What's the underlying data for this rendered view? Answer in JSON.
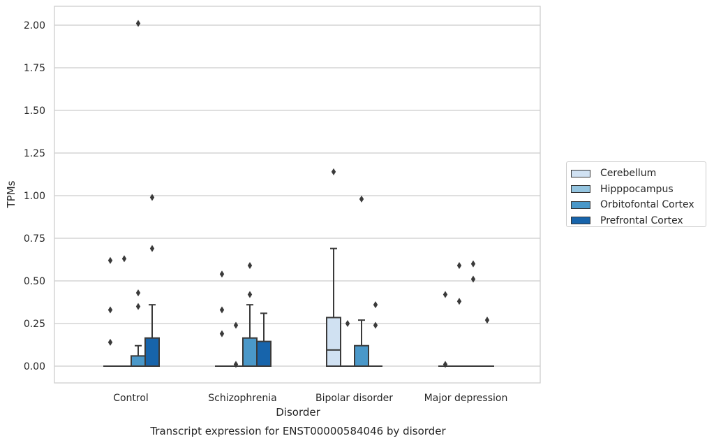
{
  "chart_data": {
    "type": "box",
    "title": "",
    "caption": "Transcript expression for ENST00000584046 by disorder",
    "xlabel": "Disorder",
    "ylabel": "TPMs",
    "categories": [
      "Control",
      "Schizophrenia",
      "Bipolar disorder",
      "Major depression"
    ],
    "ylim": [
      -0.1,
      2.1
    ],
    "yticks": [
      0.0,
      0.25,
      0.5,
      0.75,
      1.0,
      1.25,
      1.5,
      1.75,
      2.0
    ],
    "ytick_labels": [
      "0.00",
      "0.25",
      "0.50",
      "0.75",
      "1.00",
      "1.25",
      "1.50",
      "1.75",
      "2.00"
    ],
    "grid": true,
    "legend_position": "right",
    "series": [
      {
        "name": "Cerebellum",
        "color": "#d0e1f2",
        "boxes": [
          {
            "q1": 0,
            "median": 0,
            "q3": 0,
            "whislo": 0,
            "whishi": 0,
            "fliers": [
              0.14,
              0.33,
              0.62
            ]
          },
          {
            "q1": 0,
            "median": 0,
            "q3": 0,
            "whislo": 0,
            "whishi": 0,
            "fliers": [
              0.19,
              0.33,
              0.54
            ]
          },
          {
            "q1": 0,
            "median": 0.095,
            "q3": 0.285,
            "whislo": 0,
            "whishi": 0.69,
            "fliers": [
              1.14
            ]
          },
          {
            "q1": 0,
            "median": 0,
            "q3": 0,
            "whislo": 0,
            "whishi": 0,
            "fliers": [
              0.01,
              0.42
            ]
          }
        ]
      },
      {
        "name": "Hipppocampus",
        "color": "#94c4df",
        "boxes": [
          {
            "q1": 0,
            "median": 0,
            "q3": 0,
            "whislo": 0,
            "whishi": 0,
            "fliers": [
              0.63
            ]
          },
          {
            "q1": 0,
            "median": 0,
            "q3": 0,
            "whislo": 0,
            "whishi": 0,
            "fliers": [
              0.01,
              0.24
            ]
          },
          {
            "q1": 0,
            "median": 0,
            "q3": 0,
            "whislo": 0,
            "whishi": 0,
            "fliers": [
              0.25
            ]
          },
          {
            "q1": 0,
            "median": 0,
            "q3": 0,
            "whislo": 0,
            "whishi": 0,
            "fliers": [
              0.38,
              0.59
            ]
          }
        ]
      },
      {
        "name": "Orbitofontal Cortex",
        "color": "#4a98c9",
        "boxes": [
          {
            "q1": 0,
            "median": 0,
            "q3": 0.06,
            "whislo": 0,
            "whishi": 0.12,
            "fliers": [
              0.35,
              0.43,
              2.01
            ]
          },
          {
            "q1": 0,
            "median": 0,
            "q3": 0.165,
            "whislo": 0,
            "whishi": 0.36,
            "fliers": [
              0.42,
              0.59
            ]
          },
          {
            "q1": 0,
            "median": 0,
            "q3": 0.12,
            "whislo": 0,
            "whishi": 0.27,
            "fliers": [
              0.98
            ]
          },
          {
            "q1": 0,
            "median": 0,
            "q3": 0,
            "whislo": 0,
            "whishi": 0,
            "fliers": [
              0.51,
              0.6
            ]
          }
        ]
      },
      {
        "name": "Prefrontal Cortex",
        "color": "#1764ab",
        "boxes": [
          {
            "q1": 0,
            "median": 0,
            "q3": 0.165,
            "whislo": 0,
            "whishi": 0.36,
            "fliers": [
              0.69,
              0.99
            ]
          },
          {
            "q1": 0,
            "median": 0,
            "q3": 0.145,
            "whislo": 0,
            "whishi": 0.31,
            "fliers": []
          },
          {
            "q1": 0,
            "median": 0,
            "q3": 0,
            "whislo": 0,
            "whishi": 0,
            "fliers": [
              0.24,
              0.36
            ]
          },
          {
            "q1": 0,
            "median": 0,
            "q3": 0,
            "whislo": 0,
            "whishi": 0,
            "fliers": [
              0.27
            ]
          }
        ]
      }
    ]
  }
}
